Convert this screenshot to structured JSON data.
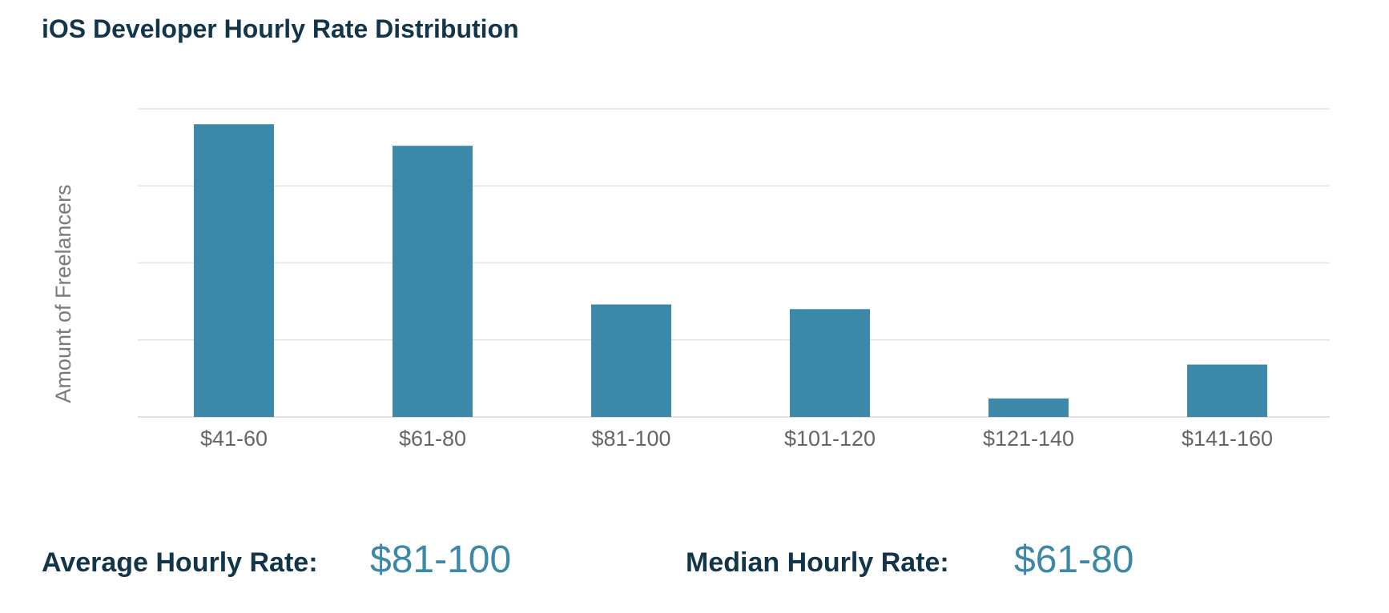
{
  "chart_data": {
    "type": "bar",
    "title": "iOS Developer Hourly Rate Distribution",
    "xlabel": "",
    "ylabel": "Amount of Freelancers",
    "categories": [
      "$41-60",
      "$61-80",
      "$81-100",
      "$101-120",
      "$121-140",
      "$141-160"
    ],
    "values": [
      95,
      88,
      36.5,
      35,
      6,
      17
    ],
    "ylim": [
      0,
      100
    ],
    "y_ticks": [
      0,
      25,
      50,
      75,
      100
    ],
    "y_tick_labels_visible": false,
    "grid": true,
    "legend": "none",
    "bar_color": "#3b88a8"
  },
  "stats": {
    "average_label": "Average Hourly Rate:",
    "average_value": "$81-100",
    "median_label": "Median Hourly Rate:",
    "median_value": "$61-80"
  },
  "colors": {
    "title": "#12354a",
    "accent": "#3b88a8",
    "grid": "#e3e3e3"
  }
}
